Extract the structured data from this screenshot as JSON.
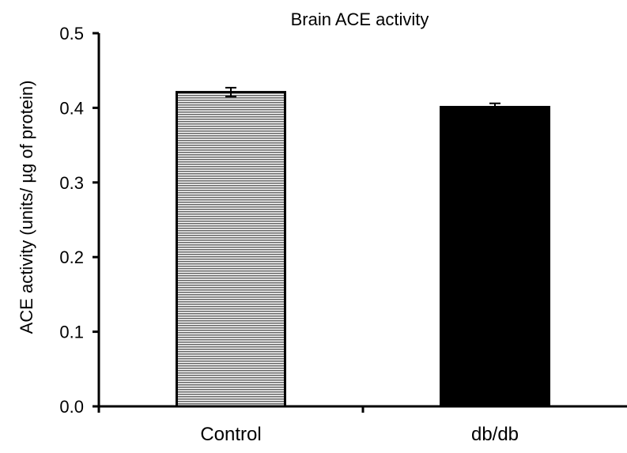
{
  "chart_data": {
    "type": "bar",
    "title": "Brain ACE activity",
    "xlabel": "",
    "ylabel": "ACE activity (units/ µg of protein)",
    "categories": [
      "Control",
      "db/db"
    ],
    "values": [
      0.421,
      0.401
    ],
    "errors": [
      0.006,
      0.005
    ],
    "ylim": [
      0.0,
      0.5
    ],
    "yticks": [
      "0.0",
      "0.1",
      "0.2",
      "0.3",
      "0.4",
      "0.5"
    ],
    "grid": false,
    "legend": "none",
    "bar_styles": [
      {
        "fill": "#8c8c8c",
        "pattern": "horizontal-stripes"
      },
      {
        "fill": "#000000",
        "pattern": "solid"
      }
    ]
  }
}
